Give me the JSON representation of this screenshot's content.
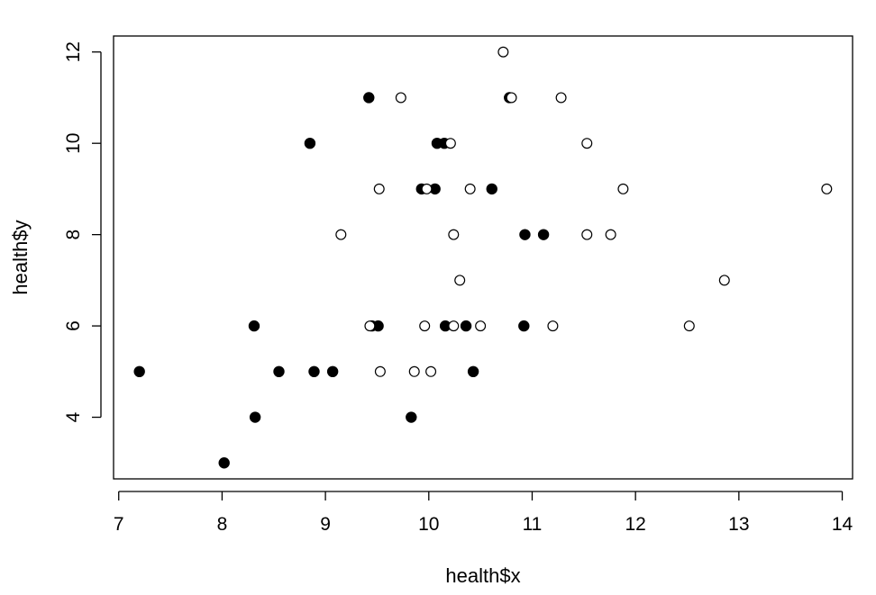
{
  "chart_data": {
    "type": "scatter",
    "title": "",
    "xlabel": "health$x",
    "ylabel": "health$y",
    "xlim": [
      6.95,
      14.1
    ],
    "ylim": [
      2.65,
      12.35
    ],
    "xticks": [
      7,
      8,
      9,
      10,
      11,
      12,
      13,
      14
    ],
    "yticks": [
      4,
      6,
      8,
      10,
      12
    ],
    "grid": false,
    "legend": "none",
    "colors": {
      "filled": "#000000",
      "open_fill": "#ffffff",
      "stroke": "#000000"
    },
    "series": [
      {
        "marker": "filled-circle",
        "points": [
          [
            7.2,
            5
          ],
          [
            8.02,
            3
          ],
          [
            8.31,
            6
          ],
          [
            8.32,
            4
          ],
          [
            8.55,
            5
          ],
          [
            8.85,
            10
          ],
          [
            8.89,
            5
          ],
          [
            9.07,
            5
          ],
          [
            9.42,
            11
          ],
          [
            9.45,
            6
          ],
          [
            9.51,
            6
          ],
          [
            9.83,
            4
          ],
          [
            9.93,
            9
          ],
          [
            10.06,
            9
          ],
          [
            10.08,
            10
          ],
          [
            10.15,
            10
          ],
          [
            10.16,
            6
          ],
          [
            10.36,
            6
          ],
          [
            10.43,
            5
          ],
          [
            10.61,
            9
          ],
          [
            10.78,
            11
          ],
          [
            10.92,
            6
          ],
          [
            10.93,
            8
          ],
          [
            11.11,
            8
          ]
        ]
      },
      {
        "marker": "open-circle",
        "points": [
          [
            9.15,
            8
          ],
          [
            9.43,
            6
          ],
          [
            9.52,
            9
          ],
          [
            9.53,
            5
          ],
          [
            9.73,
            11
          ],
          [
            9.86,
            5
          ],
          [
            9.96,
            6
          ],
          [
            9.98,
            9
          ],
          [
            10.02,
            5
          ],
          [
            10.21,
            10
          ],
          [
            10.24,
            8
          ],
          [
            10.24,
            6
          ],
          [
            10.3,
            7
          ],
          [
            10.4,
            9
          ],
          [
            10.5,
            6
          ],
          [
            10.72,
            12
          ],
          [
            10.8,
            11
          ],
          [
            11.2,
            6
          ],
          [
            11.28,
            11
          ],
          [
            11.53,
            10
          ],
          [
            11.53,
            8
          ],
          [
            11.76,
            8
          ],
          [
            11.88,
            9
          ],
          [
            12.52,
            6
          ],
          [
            12.86,
            7
          ],
          [
            13.85,
            9
          ]
        ]
      }
    ]
  }
}
